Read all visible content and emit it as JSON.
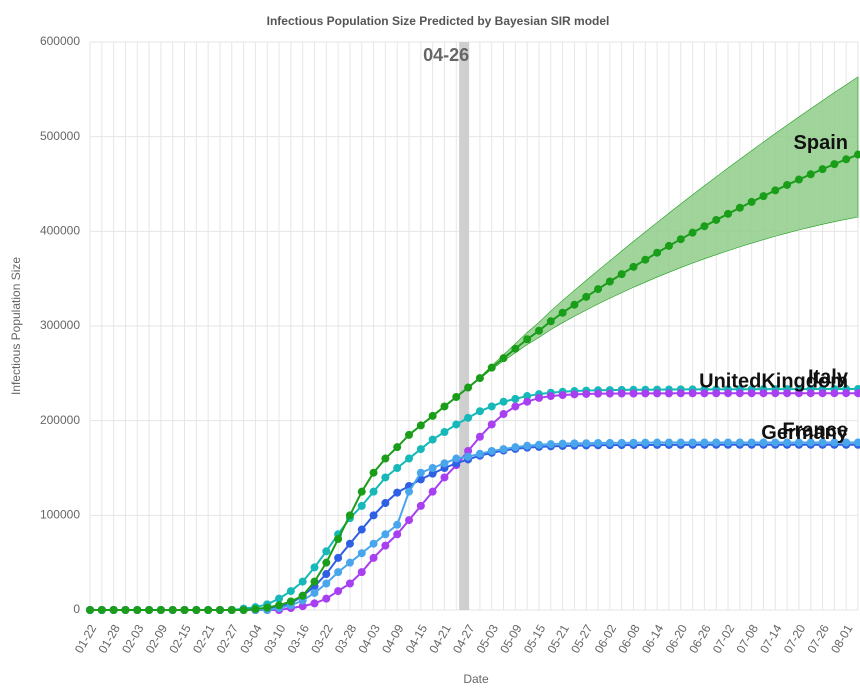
{
  "chart_data": {
    "type": "line",
    "title": "Infectious Population Size Predicted by Bayesian SIR model",
    "x_label": "Date",
    "y_label": "Infectious Population Size",
    "annotation": "04-26",
    "categories": [
      "01-22",
      null,
      "01-28",
      null,
      "02-03",
      null,
      "02-09",
      null,
      "02-15",
      null,
      "02-21",
      null,
      "02-27",
      null,
      "03-04",
      null,
      "03-10",
      null,
      "03-16",
      null,
      "03-22",
      null,
      "03-28",
      null,
      "04-03",
      null,
      "04-09",
      null,
      "04-15",
      null,
      "04-21",
      null,
      "04-27",
      null,
      "05-03",
      null,
      "05-09",
      null,
      "05-15",
      null,
      "05-21",
      null,
      "05-27",
      null,
      "06-02",
      null,
      "06-08",
      null,
      "06-14",
      null,
      "06-20",
      null,
      "06-26",
      null,
      "07-02",
      null,
      "07-08",
      null,
      "07-14",
      null,
      "07-20",
      null,
      "07-26",
      null,
      "08-01",
      null
    ],
    "ylim": [
      0,
      600000
    ],
    "yticks": [
      0,
      100000,
      200000,
      300000,
      400000,
      500000,
      600000
    ],
    "grid": true,
    "series": [
      {
        "name": "Italy",
        "color": "#17b8b8",
        "values": [
          0,
          0,
          0,
          0,
          0,
          0,
          0,
          0,
          0,
          0,
          0,
          0,
          0,
          1500,
          3000,
          6000,
          12000,
          20000,
          30000,
          45000,
          62000,
          80000,
          97000,
          110000,
          125000,
          140000,
          150000,
          160000,
          170000,
          180000,
          188000,
          196000,
          203000,
          210000,
          215000,
          220000,
          223000,
          226000,
          228000,
          229500,
          230500,
          231300,
          231800,
          232100,
          232300,
          232500,
          232600,
          232700,
          232800,
          232900,
          233000,
          233000,
          233100,
          233100,
          233200,
          233200,
          233200,
          233300,
          233300,
          233300,
          233300,
          233400,
          233400,
          233400,
          233400,
          233400
        ]
      },
      {
        "name": "UnitedKingdom",
        "color": "#a83ff0",
        "values": [
          0,
          0,
          0,
          0,
          0,
          0,
          0,
          0,
          0,
          0,
          0,
          0,
          0,
          0,
          0,
          0,
          0,
          2000,
          4000,
          7000,
          12000,
          20000,
          28000,
          40000,
          55000,
          68000,
          80000,
          95000,
          110000,
          125000,
          140000,
          153000,
          168000,
          183000,
          196000,
          207000,
          215000,
          220000,
          224000,
          226000,
          227000,
          227800,
          228200,
          228500,
          228600,
          228700,
          228700,
          228800,
          228800,
          228800,
          228900,
          228900,
          228900,
          228900,
          229000,
          229000,
          229000,
          229000,
          229000,
          229000,
          229000,
          229000,
          229000,
          229000,
          229000,
          229000
        ]
      },
      {
        "name": "Germany",
        "color": "#2f5fe3",
        "values": [
          0,
          0,
          0,
          0,
          0,
          0,
          0,
          0,
          0,
          0,
          0,
          0,
          0,
          0,
          0,
          1000,
          3000,
          7000,
          15000,
          25000,
          38000,
          55000,
          70000,
          85000,
          100000,
          113000,
          124000,
          131000,
          138000,
          144000,
          150000,
          155000,
          159000,
          163000,
          166000,
          168500,
          170200,
          171500,
          172300,
          172900,
          173300,
          173600,
          173800,
          174000,
          174100,
          174200,
          174300,
          174300,
          174400,
          174400,
          174400,
          174500,
          174500,
          174500,
          174500,
          174500,
          174500,
          174500,
          174500,
          174500,
          174500,
          174500,
          174500,
          174500,
          174500,
          174500
        ]
      },
      {
        "name": "France",
        "color": "#4aa6ec",
        "values": [
          0,
          0,
          0,
          0,
          0,
          0,
          0,
          0,
          0,
          0,
          0,
          0,
          0,
          0,
          0,
          0,
          2000,
          5000,
          10000,
          18000,
          28000,
          40000,
          50000,
          60000,
          70000,
          80000,
          90000,
          125000,
          145000,
          150000,
          155000,
          160000,
          162000,
          165000,
          168000,
          170000,
          172000,
          173500,
          174500,
          175200,
          175700,
          176000,
          176200,
          176400,
          176500,
          176600,
          176700,
          176800,
          176900,
          177000,
          177000,
          177000,
          177000,
          177000,
          177000,
          177000,
          177000,
          177000,
          177000,
          177000,
          177000,
          177000,
          177000,
          177000,
          177000,
          177000
        ]
      },
      {
        "name": "Spain",
        "color": "#1a9e1a",
        "band_color": "#8fcc8a",
        "values": [
          0,
          0,
          0,
          0,
          0,
          0,
          0,
          0,
          0,
          0,
          0,
          0,
          0,
          0,
          1000,
          2500,
          5000,
          9000,
          15000,
          30000,
          50000,
          75000,
          100000,
          125000,
          145000,
          160000,
          172000,
          185000,
          195000,
          205000,
          215000,
          225000,
          235000,
          245000,
          256000,
          266000,
          276000,
          286000,
          295000,
          305000,
          314000,
          322500,
          330800,
          339000,
          347000,
          354800,
          362500,
          370000,
          377400,
          384600,
          391700,
          398600,
          405400,
          412000,
          418500,
          424900,
          431100,
          437200,
          443200,
          449000,
          454700,
          460300,
          465700,
          471000,
          476100,
          481100
        ],
        "upper": [
          null,
          null,
          null,
          null,
          null,
          null,
          null,
          null,
          null,
          null,
          null,
          null,
          null,
          null,
          null,
          null,
          null,
          null,
          null,
          null,
          null,
          null,
          null,
          null,
          null,
          null,
          null,
          null,
          null,
          null,
          null,
          null,
          235000,
          245900,
          258100,
          269600,
          281300,
          293100,
          303900,
          315900,
          327000,
          337700,
          348200,
          358700,
          369000,
          379200,
          389400,
          399400,
          409400,
          419200,
          429000,
          438600,
          448200,
          457600,
          466900,
          476200,
          485300,
          494400,
          503300,
          512200,
          520900,
          529600,
          538100,
          546600,
          554900,
          563100
        ],
        "lower": [
          null,
          null,
          null,
          null,
          null,
          null,
          null,
          null,
          null,
          null,
          null,
          null,
          null,
          null,
          null,
          null,
          null,
          null,
          null,
          null,
          null,
          null,
          null,
          null,
          null,
          null,
          null,
          null,
          null,
          null,
          null,
          null,
          235000,
          244300,
          254300,
          263100,
          271800,
          280300,
          287800,
          296200,
          303500,
          310300,
          316800,
          323200,
          329300,
          335100,
          340900,
          346300,
          351700,
          356700,
          361700,
          366400,
          371000,
          375300,
          379500,
          383600,
          387500,
          391200,
          394800,
          398200,
          401400,
          404500,
          407400,
          410200,
          412700,
          415100
        ]
      }
    ]
  }
}
